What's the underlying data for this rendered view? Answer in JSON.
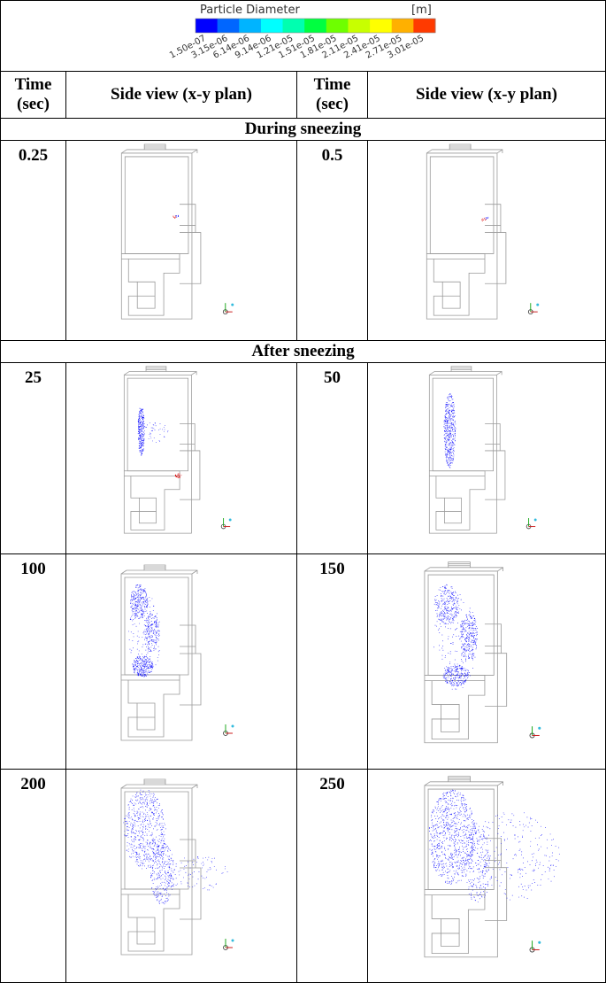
{
  "legend": {
    "title": "Particle Diameter",
    "unit": "[m]",
    "labels": [
      "1.50e-07",
      "3.15e-06",
      "6.14e-06",
      "9.14e-06",
      "1.21e-05",
      "1.51e-05",
      "1.81e-05",
      "2.11e-05",
      "2.41e-05",
      "2.71e-05",
      "3.01e-05"
    ]
  },
  "table": {
    "header": [
      "Time (sec)",
      "Side view (x-y plan)",
      "Time (sec)",
      "Side view (x-y plan)"
    ],
    "sections": [
      {
        "title": "During sneezing",
        "rows": [
          [
            "0.25",
            "0.5"
          ]
        ]
      },
      {
        "title": "After sneezing",
        "rows": [
          [
            "25",
            "50"
          ],
          [
            "100",
            "150"
          ],
          [
            "200",
            "250"
          ]
        ]
      }
    ]
  }
}
